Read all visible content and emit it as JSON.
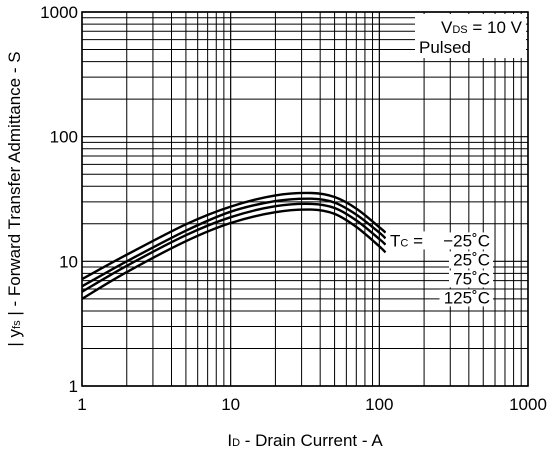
{
  "chart_data": {
    "type": "line",
    "x_scale": "log",
    "y_scale": "log",
    "xlim": [
      1,
      1000
    ],
    "ylim": [
      1,
      1000
    ],
    "grid": true,
    "xlabel_parts": {
      "symbol": "I",
      "sub": "D",
      "text": " - Drain Current - A"
    },
    "ylabel_parts": {
      "pre": "| y",
      "sub": "fs",
      "text": " | - Forward Transfer Admittance - S"
    },
    "x_ticks": [
      {
        "value": 1,
        "label": "1"
      },
      {
        "value": 10,
        "label": "10"
      },
      {
        "value": 100,
        "label": "100"
      },
      {
        "value": 1000,
        "label": "1000"
      }
    ],
    "y_ticks": [
      {
        "value": 1,
        "label": "1"
      },
      {
        "value": 10,
        "label": "10"
      },
      {
        "value": 100,
        "label": "100"
      },
      {
        "value": 1000,
        "label": "1000"
      }
    ],
    "condition": {
      "symbol": "V",
      "sub": "DS",
      "value": " = 10 V",
      "line2": "Pulsed"
    },
    "series_param": {
      "symbol": "T",
      "sub": "C",
      "eq": " = "
    },
    "series": [
      {
        "name": "−25˚C",
        "x": [
          1,
          2,
          5,
          10,
          20,
          35,
          50,
          70,
          100,
          110
        ],
        "y": [
          7.2,
          11.3,
          19.8,
          27.5,
          33.8,
          35.3,
          32.8,
          26.5,
          18.8,
          17.0
        ]
      },
      {
        "name": "25˚C",
        "x": [
          1,
          2,
          5,
          10,
          20,
          35,
          50,
          70,
          100,
          110
        ],
        "y": [
          6.3,
          10.0,
          17.6,
          25.0,
          30.4,
          31.8,
          29.6,
          23.7,
          17.0,
          15.3
        ]
      },
      {
        "name": "75˚C",
        "x": [
          1,
          2,
          5,
          10,
          20,
          35,
          50,
          70,
          100,
          110
        ],
        "y": [
          5.7,
          9.2,
          16.2,
          22.6,
          27.7,
          28.9,
          26.8,
          21.3,
          15.1,
          13.6
        ]
      },
      {
        "name": "125˚C",
        "x": [
          1,
          2,
          5,
          10,
          20,
          35,
          50,
          70,
          100,
          110
        ],
        "y": [
          5.0,
          8.2,
          14.5,
          20.3,
          24.8,
          26.0,
          24.0,
          18.9,
          13.2,
          11.8
        ]
      }
    ]
  }
}
